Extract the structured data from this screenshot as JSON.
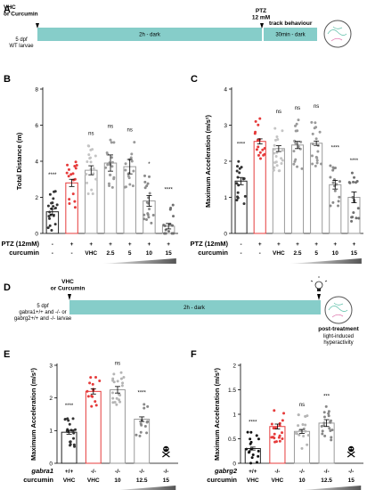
{
  "panel_a": {
    "letter": "A",
    "treatment": "VHC\nor Curcumin",
    "larvae": "5 dpf\nWT larvae",
    "dark1": "2h - dark",
    "ptz": "PTZ\n12 mM",
    "track": "track behaviour",
    "dark2": "30min - dark",
    "bar_color": "#86cdc9"
  },
  "panel_d": {
    "letter": "D",
    "treatment": "VHC\nor Curcumin",
    "larvae": "5 dpf\ngabra1+/+ and -/- or\ngabrg2+/+ and -/- larvae",
    "dark": "2h - dark",
    "post": "post-treatment",
    "post2": "light-induced\nhyperactivity",
    "bar_color": "#86cdc9"
  },
  "panel_b": {
    "letter": "B",
    "ylabel": "Total Distance (m)",
    "row1_label": "PTZ (12mM)",
    "row2_label": "curcumin",
    "ptz_row": [
      "-",
      "+",
      "+",
      "+",
      "+",
      "+",
      "+"
    ],
    "cur_row": [
      "-",
      "-",
      "VHC",
      "2.5",
      "5",
      "10",
      "15"
    ]
  },
  "panel_c": {
    "letter": "C",
    "ylabel": "Maximum Acceleration (m/s²)",
    "row1_label": "PTZ (12mM)",
    "row2_label": "curcumin",
    "ptz_row": [
      "-",
      "+",
      "+",
      "+",
      "+",
      "+",
      "+"
    ],
    "cur_row": [
      "-",
      "-",
      "VHC",
      "2.5",
      "5",
      "10",
      "15"
    ]
  },
  "panel_e": {
    "letter": "E",
    "ylabel": "Maximum Acceleration (m/s²)",
    "row1_label": "gabra1",
    "row2_label": "curcumin",
    "geno_row": [
      "+/+",
      "-/-",
      "-/-",
      "-/-",
      "-/-"
    ],
    "cur_row": [
      "VHC",
      "VHC",
      "10",
      "12.5",
      "15"
    ]
  },
  "panel_f": {
    "letter": "F",
    "ylabel": "Maximum Acceleration (m/s²)",
    "row1_label": "gabrg2",
    "row2_label": "curcumin",
    "geno_row": [
      "+/+",
      "-/-",
      "-/-",
      "-/-",
      "-/-"
    ],
    "cur_row": [
      "VHC",
      "VHC",
      "10",
      "12.5",
      "15"
    ]
  },
  "chart_data": [
    {
      "panel": "B",
      "type": "bar",
      "ylabel": "Total Distance (m)",
      "ylim": [
        0,
        8
      ],
      "yticks": [
        0,
        2,
        4,
        6,
        8
      ],
      "values": [
        1.2,
        2.8,
        3.5,
        3.9,
        3.7,
        1.8,
        0.4
      ],
      "errors": [
        0.15,
        0.2,
        0.25,
        0.45,
        0.4,
        0.3,
        0.15
      ],
      "significance": [
        "****",
        "",
        "ns",
        "ns",
        "ns",
        "*",
        "****"
      ],
      "fills": [
        "#ffffff",
        "#ffffff",
        "#ffffff",
        "#ffffff",
        "#ffffff",
        "#ffffff",
        "#ffffff"
      ],
      "edges": [
        "#222222",
        "#e63b3b",
        "#9a9a9a",
        "#9a9a9a",
        "#9a9a9a",
        "#9a9a9a",
        "#9a9a9a"
      ],
      "dots": [
        "#333333",
        "#e63b3b",
        "#c4c4c4",
        "#9a9a9a",
        "#9a9a9a",
        "#8a8a8a",
        "#707070"
      ]
    },
    {
      "panel": "C",
      "type": "bar",
      "ylabel": "Maximum Acceleration (m/s²)",
      "ylim": [
        0,
        4
      ],
      "yticks": [
        0,
        1,
        2,
        3,
        4
      ],
      "values": [
        1.45,
        2.55,
        2.35,
        2.45,
        2.5,
        1.35,
        1.0
      ],
      "errors": [
        0.1,
        0.07,
        0.08,
        0.1,
        0.06,
        0.12,
        0.15
      ],
      "significance": [
        "****",
        "",
        "ns",
        "ns",
        "ns",
        "****",
        "****"
      ],
      "fills": [
        "#ffffff",
        "#ffffff",
        "#ffffff",
        "#ffffff",
        "#ffffff",
        "#ffffff",
        "#ffffff"
      ],
      "edges": [
        "#222222",
        "#e63b3b",
        "#9a9a9a",
        "#9a9a9a",
        "#9a9a9a",
        "#9a9a9a",
        "#9a9a9a"
      ],
      "dots": [
        "#333333",
        "#e63b3b",
        "#c4c4c4",
        "#9a9a9a",
        "#9a9a9a",
        "#8a8a8a",
        "#707070"
      ]
    },
    {
      "panel": "E",
      "type": "bar",
      "ylabel": "Maximum Acceleration (m/s²)",
      "ylim": [
        0,
        3
      ],
      "yticks": [
        0,
        1,
        2,
        3
      ],
      "values": [
        0.95,
        2.2,
        2.25,
        1.35,
        null
      ],
      "errors": [
        0.06,
        0.08,
        0.1,
        0.07,
        null
      ],
      "significance": [
        "****",
        "",
        "ns",
        "****",
        ""
      ],
      "fills": [
        "#ffffff",
        "#ffffff",
        "#ffffff",
        "#ffffff",
        "#ffffff"
      ],
      "edges": [
        "#222222",
        "#e63b3b",
        "#9a9a9a",
        "#9a9a9a",
        "#9a9a9a"
      ],
      "dots": [
        "#333333",
        "#e63b3b",
        "#b5b5b5",
        "#888888",
        "#888888"
      ],
      "dead_last": true
    },
    {
      "panel": "F",
      "type": "bar",
      "ylabel": "Maximum Acceleration (m/s²)",
      "ylim": [
        0,
        2
      ],
      "yticks": [
        0,
        0.5,
        1,
        1.5,
        2
      ],
      "values": [
        0.3,
        0.75,
        0.65,
        0.82,
        null
      ],
      "errors": [
        0.03,
        0.05,
        0.04,
        0.07,
        null
      ],
      "significance": [
        "****",
        "",
        "ns",
        "***",
        ""
      ],
      "fills": [
        "#ffffff",
        "#ffffff",
        "#ffffff",
        "#ffffff",
        "#ffffff"
      ],
      "edges": [
        "#222222",
        "#e63b3b",
        "#9a9a9a",
        "#9a9a9a",
        "#9a9a9a"
      ],
      "dots": [
        "#111111",
        "#e63b3b",
        "#b5b5b5",
        "#888888",
        "#888888"
      ],
      "dead_last": true
    }
  ]
}
